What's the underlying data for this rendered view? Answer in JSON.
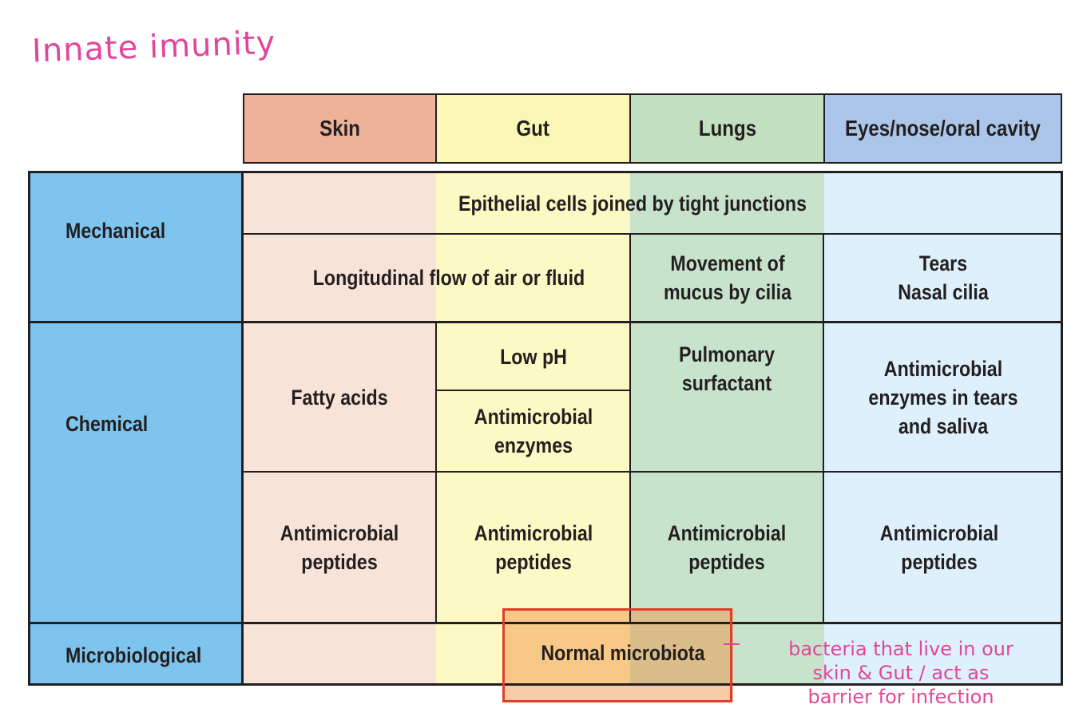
{
  "annotations": {
    "title": "Innate imunity",
    "note": "bacteria that live in our\nskin & Gut / act as\nbarrier for infection",
    "colors": {
      "ink": "#e0479a",
      "highlight_box": "#e23c2a"
    }
  },
  "table": {
    "column_headers": [
      "Skin",
      "Gut",
      "Lungs",
      "Eyes/nose/oral cavity"
    ],
    "row_headers": [
      "Mechanical",
      "Chemical",
      "Microbiological"
    ],
    "cells": {
      "epithelial": "Epithelial cells joined by tight junctions",
      "longitudinal_flow": "Longitudinal flow of air or fluid",
      "mucus_cilia": "Movement of\nmucus by cilia",
      "tears_cilia": "Tears\nNasal cilia",
      "fatty_acids": "Fatty acids",
      "low_ph": "Low pH",
      "gut_enzymes": "Antimicrobial\nenzymes",
      "surfactant": "Pulmonary\nsurfactant",
      "tears_enzymes": "Antimicrobial\nenzymes in tears\nand saliva",
      "peptides_skin": "Antimicrobial\npeptides",
      "peptides_gut": "Antimicrobial\npeptides",
      "peptides_lungs": "Antimicrobial\npeptides",
      "peptides_eyes": "Antimicrobial\npeptides",
      "microbiota": "Normal microbiota"
    },
    "colors": {
      "skin_header": "#ecb39a",
      "gut_header": "#fbf7b6",
      "lungs_header": "#c2dfc0",
      "eyes_header": "#abc6e8",
      "skin_body": "#f8e3d9",
      "gut_body": "#fdf9c4",
      "lungs_body": "#c8e3cc",
      "eyes_body": "#def0fb",
      "row_header": "#7dc4ef"
    }
  }
}
